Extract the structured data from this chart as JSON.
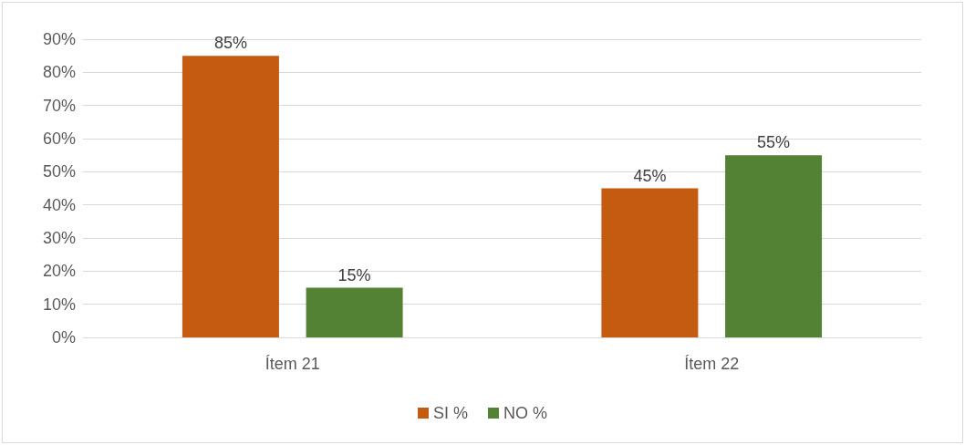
{
  "chart_data": {
    "type": "bar",
    "categories": [
      "Ítem 21",
      "Ítem 22"
    ],
    "series": [
      {
        "name": "SI %",
        "color": "#c55a11",
        "values": [
          85,
          45
        ],
        "value_labels": [
          "85%",
          "45%"
        ]
      },
      {
        "name": "NO %",
        "color": "#548235",
        "values": [
          15,
          55
        ],
        "value_labels": [
          "15%",
          "55%"
        ]
      }
    ],
    "ylim": [
      0,
      90
    ],
    "yticks": [
      {
        "value": 0,
        "label": "0%"
      },
      {
        "value": 10,
        "label": "10%"
      },
      {
        "value": 20,
        "label": "20%"
      },
      {
        "value": 30,
        "label": "30%"
      },
      {
        "value": 40,
        "label": "40%"
      },
      {
        "value": 50,
        "label": "50%"
      },
      {
        "value": 60,
        "label": "60%"
      },
      {
        "value": 70,
        "label": "70%"
      },
      {
        "value": 80,
        "label": "80%"
      },
      {
        "value": 90,
        "label": "90%"
      }
    ],
    "grid": "y",
    "legend": "bottom"
  }
}
